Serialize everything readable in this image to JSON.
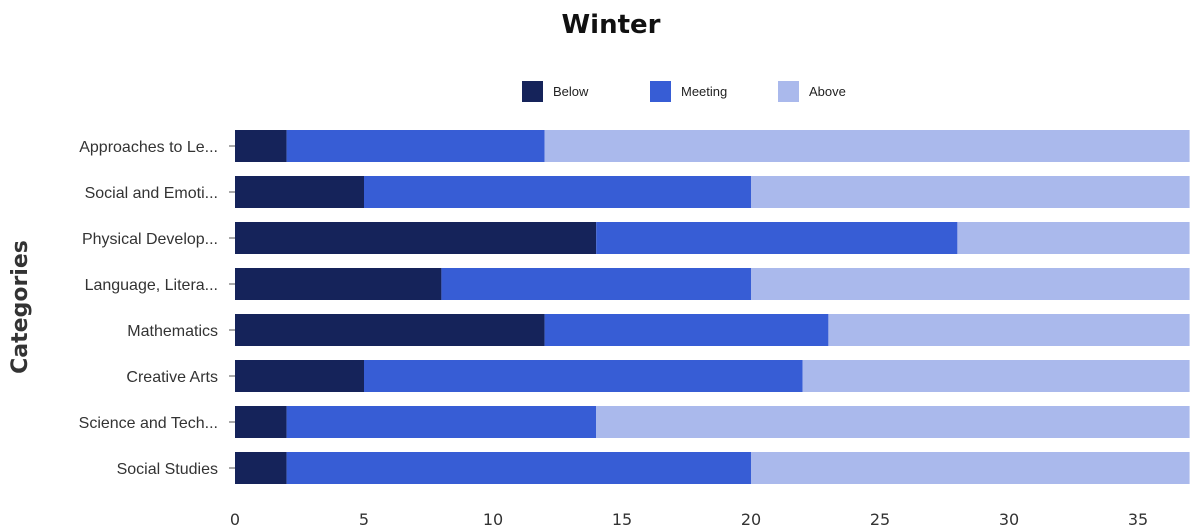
{
  "chart_data": {
    "type": "bar",
    "orientation": "horizontal",
    "stacked": true,
    "title": "Winter",
    "xlabel": "",
    "ylabel": "Categories",
    "categories": [
      "Approaches to Le...",
      "Social and Emoti...",
      "Physical Develop...",
      "Language, Litera...",
      "Mathematics",
      "Creative Arts",
      "Science and Tech...",
      "Social Studies"
    ],
    "series": [
      {
        "name": "Below",
        "color": "#15235a",
        "values": [
          2,
          5,
          14,
          8,
          12,
          5,
          2,
          2
        ]
      },
      {
        "name": "Meeting",
        "color": "#375dd5",
        "values": [
          10,
          15,
          14,
          12,
          11,
          17,
          12,
          18
        ]
      },
      {
        "name": "Above",
        "color": "#aab9ec",
        "values": [
          25,
          17,
          9,
          17,
          14,
          15,
          23,
          17
        ]
      }
    ],
    "xlim": [
      0,
      37
    ],
    "xticks": [
      0,
      5,
      10,
      15,
      20,
      25,
      30,
      35
    ],
    "grid": false,
    "legend_position": "top-center"
  }
}
